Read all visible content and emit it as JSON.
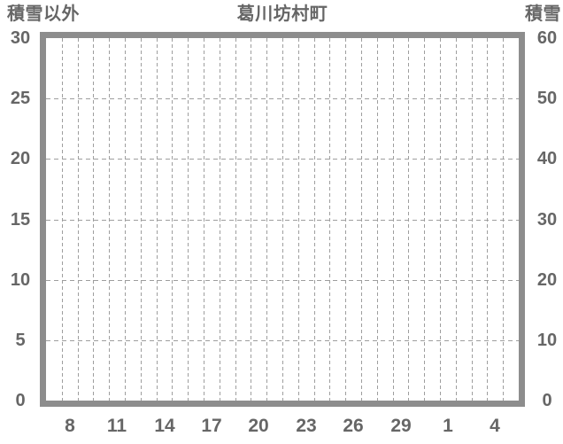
{
  "colors": {
    "background": "#ffffff",
    "frame": "#8d8d8d",
    "grid": "#9e9e9e",
    "text": "#666666"
  },
  "chart_data": {
    "type": "line",
    "title": "葛川坊村町",
    "left_axis": {
      "label": "積雪以外",
      "min": 0,
      "max": 30,
      "ticks": [
        "0",
        "5",
        "10",
        "15",
        "20",
        "25",
        "30"
      ]
    },
    "right_axis": {
      "label": "積雪",
      "min": 0,
      "max": 60,
      "ticks": [
        "0",
        "10",
        "20",
        "30",
        "40",
        "50",
        "60"
      ]
    },
    "x_axis": {
      "slot_count": 30,
      "tick_labels": [
        "8",
        "11",
        "14",
        "17",
        "20",
        "23",
        "26",
        "29",
        "1",
        "4"
      ],
      "first_labeled_slot": 2,
      "label_step": 3
    },
    "grid": {
      "vertical_per_slot": true,
      "horizontal_left_values": [
        5,
        10,
        15,
        20,
        25
      ]
    },
    "series": []
  }
}
